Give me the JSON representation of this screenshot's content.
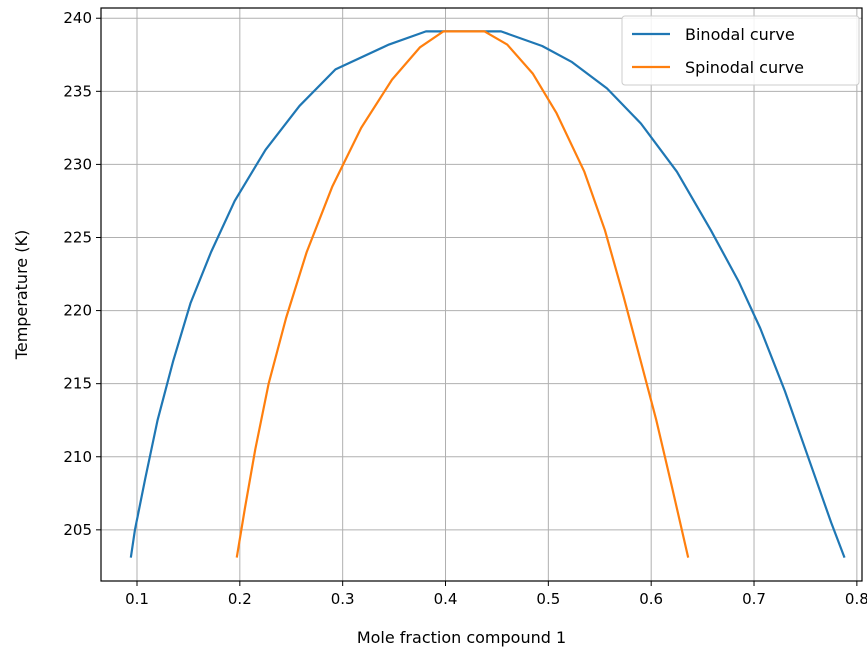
{
  "chart_data": {
    "type": "line",
    "xlabel": "Mole fraction compound 1",
    "ylabel": "Temperature (K)",
    "xlim": [
      0.065,
      0.805
    ],
    "ylim": [
      201.5,
      240.7
    ],
    "x_ticks": [
      0.1,
      0.2,
      0.3,
      0.4,
      0.5,
      0.6,
      0.7,
      0.8
    ],
    "x_tick_labels": [
      "0.1",
      "0.2",
      "0.3",
      "0.4",
      "0.5",
      "0.6",
      "0.7",
      "0.8"
    ],
    "y_ticks": [
      205,
      210,
      215,
      220,
      225,
      230,
      235,
      240
    ],
    "y_tick_labels": [
      "205",
      "210",
      "215",
      "220",
      "225",
      "230",
      "235",
      "240"
    ],
    "grid": true,
    "legend_position": "top-right",
    "series": [
      {
        "name": "Binodal curve",
        "color": "#1f77b4",
        "points": [
          [
            0.094,
            203.1
          ],
          [
            0.098,
            205.0
          ],
          [
            0.108,
            208.5
          ],
          [
            0.12,
            212.5
          ],
          [
            0.135,
            216.5
          ],
          [
            0.152,
            220.5
          ],
          [
            0.172,
            224.0
          ],
          [
            0.195,
            227.5
          ],
          [
            0.225,
            231.0
          ],
          [
            0.258,
            234.0
          ],
          [
            0.293,
            236.5
          ],
          [
            0.345,
            238.2
          ],
          [
            0.381,
            239.1
          ],
          [
            0.454,
            239.1
          ],
          [
            0.494,
            238.1
          ],
          [
            0.523,
            237.0
          ],
          [
            0.557,
            235.2
          ],
          [
            0.59,
            232.8
          ],
          [
            0.625,
            229.5
          ],
          [
            0.658,
            225.5
          ],
          [
            0.685,
            222.0
          ],
          [
            0.706,
            218.8
          ],
          [
            0.73,
            214.5
          ],
          [
            0.755,
            209.5
          ],
          [
            0.775,
            205.5
          ],
          [
            0.788,
            203.1
          ]
        ]
      },
      {
        "name": "Spinodal curve",
        "color": "#ff7f0e",
        "points": [
          [
            0.197,
            203.1
          ],
          [
            0.205,
            206.5
          ],
          [
            0.215,
            210.5
          ],
          [
            0.228,
            215.0
          ],
          [
            0.245,
            219.5
          ],
          [
            0.265,
            224.0
          ],
          [
            0.29,
            228.5
          ],
          [
            0.318,
            232.5
          ],
          [
            0.348,
            235.8
          ],
          [
            0.375,
            238.0
          ],
          [
            0.398,
            239.1
          ],
          [
            0.438,
            239.1
          ],
          [
            0.46,
            238.2
          ],
          [
            0.485,
            236.2
          ],
          [
            0.508,
            233.5
          ],
          [
            0.535,
            229.5
          ],
          [
            0.555,
            225.5
          ],
          [
            0.573,
            221.0
          ],
          [
            0.59,
            216.5
          ],
          [
            0.605,
            212.5
          ],
          [
            0.62,
            208.0
          ],
          [
            0.636,
            203.1
          ]
        ]
      }
    ]
  }
}
